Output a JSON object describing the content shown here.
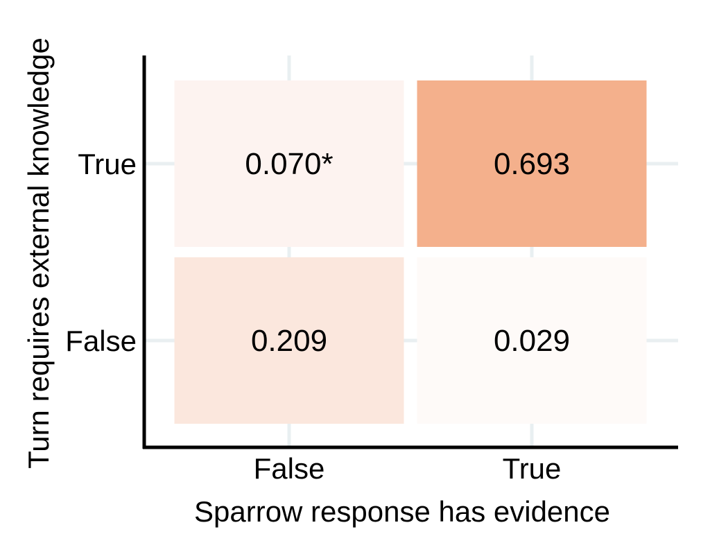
{
  "chart_data": {
    "type": "heatmap",
    "title": "",
    "xlabel": "Sparrow response has evidence",
    "ylabel": "Turn requires external knowledge",
    "x_categories": [
      "False",
      "True"
    ],
    "y_categories": [
      "True",
      "False"
    ],
    "cells": [
      {
        "x": "False",
        "y": "True",
        "value": 0.07,
        "label": "0.070*",
        "color": "#fdf3f0"
      },
      {
        "x": "True",
        "y": "True",
        "value": 0.693,
        "label": "0.693",
        "color": "#f4b08c"
      },
      {
        "x": "False",
        "y": "False",
        "value": 0.209,
        "label": "0.209",
        "color": "#fbe7dd"
      },
      {
        "x": "True",
        "y": "False",
        "value": 0.029,
        "label": "0.029",
        "color": "#fefaf8"
      }
    ],
    "grid": true,
    "grid_color": "#e9eff1",
    "axis_color": "#000000"
  }
}
